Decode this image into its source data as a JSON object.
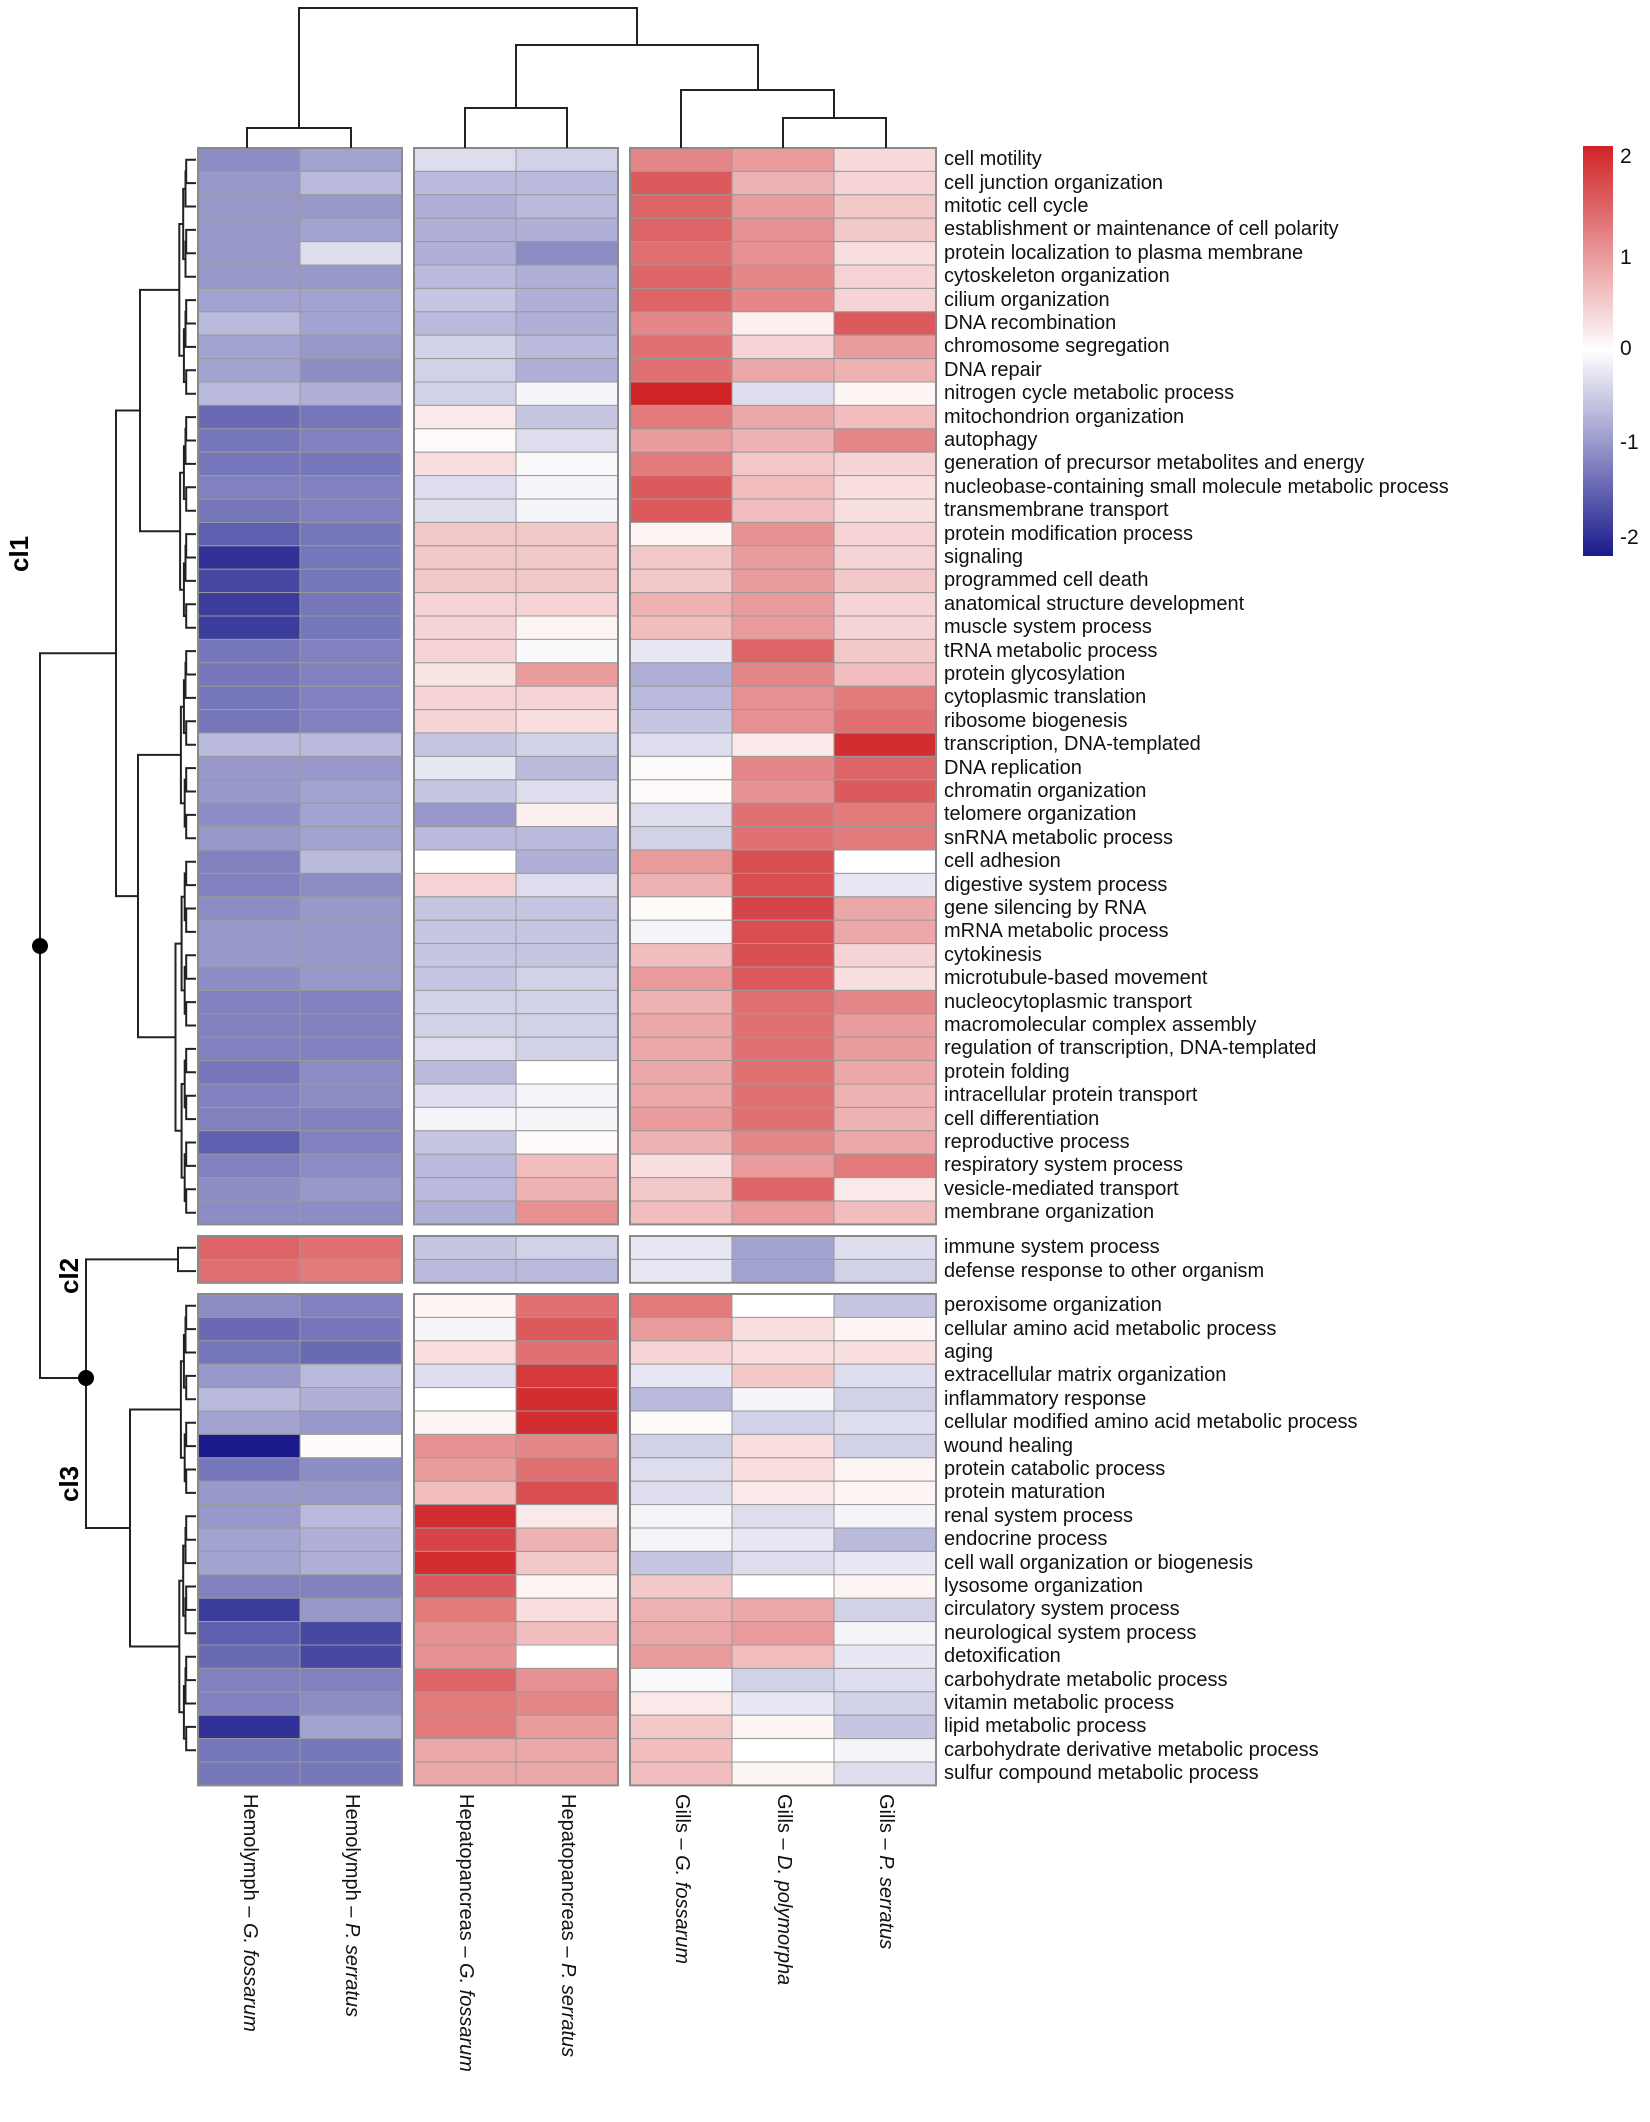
{
  "chart_data": {
    "type": "heatmap",
    "title": "",
    "legend": {
      "position": "top-right",
      "min": -2,
      "max": 2,
      "ticks": [
        "2",
        "1",
        "0",
        "-1",
        "-2"
      ],
      "colors": {
        "low": "#1a1a8c",
        "mid": "#ffffff",
        "high": "#d02326"
      }
    },
    "columns": [
      {
        "tissue": "Hemolymph",
        "species": "G. fossarum",
        "label": "Hemolymph – G. fossarum"
      },
      {
        "tissue": "Hemolymph",
        "species": "P. serratus",
        "label": "Hemolymph – P. serratus"
      },
      {
        "tissue": "Hepatopancreas",
        "species": "G. fossarum",
        "label": "Hepatopancreas – G. fossarum"
      },
      {
        "tissue": "Hepatopancreas",
        "species": "P. serratus",
        "label": "Hepatopancreas – P. serratus"
      },
      {
        "tissue": "Gills",
        "species": "G. fossarum",
        "label": "Gills – G. fossarum"
      },
      {
        "tissue": "Gills",
        "species": "D. polymorpha",
        "label": "Gills – D. polymorpha"
      },
      {
        "tissue": "Gills",
        "species": "P. serratus",
        "label": "Gills – P. serratus"
      }
    ],
    "clusters": [
      "cl1",
      "cl2",
      "cl3"
    ],
    "rows": [
      {
        "label": "cell motility",
        "cluster": "cl1",
        "values": [
          -1.0,
          -0.8,
          -0.3,
          -0.4,
          1.1,
          0.9,
          0.35
        ]
      },
      {
        "label": "cell junction organization",
        "cluster": "cl1",
        "values": [
          -0.9,
          -0.6,
          -0.6,
          -0.6,
          1.5,
          0.7,
          0.4
        ]
      },
      {
        "label": "mitotic cell cycle",
        "cluster": "cl1",
        "values": [
          -0.9,
          -0.9,
          -0.7,
          -0.6,
          1.4,
          0.9,
          0.5
        ]
      },
      {
        "label": "establishment or maintenance of cell polarity",
        "cluster": "cl1",
        "values": [
          -0.9,
          -0.8,
          -0.7,
          -0.7,
          1.4,
          1.0,
          0.5
        ]
      },
      {
        "label": "protein localization to plasma membrane",
        "cluster": "cl1",
        "values": [
          -0.9,
          -0.3,
          -0.7,
          -1.0,
          1.3,
          1.0,
          0.3
        ]
      },
      {
        "label": "cytoskeleton organization",
        "cluster": "cl1",
        "values": [
          -0.9,
          -0.9,
          -0.6,
          -0.7,
          1.4,
          1.1,
          0.4
        ]
      },
      {
        "label": "cilium organization",
        "cluster": "cl1",
        "values": [
          -0.8,
          -0.8,
          -0.5,
          -0.7,
          1.4,
          1.1,
          0.4
        ]
      },
      {
        "label": "DNA recombination",
        "cluster": "cl1",
        "values": [
          -0.6,
          -0.8,
          -0.6,
          -0.7,
          1.1,
          0.15,
          1.5
        ]
      },
      {
        "label": "chromosome segregation",
        "cluster": "cl1",
        "values": [
          -0.8,
          -0.9,
          -0.4,
          -0.6,
          1.3,
          0.4,
          0.9
        ]
      },
      {
        "label": "DNA repair",
        "cluster": "cl1",
        "values": [
          -0.8,
          -1.0,
          -0.4,
          -0.7,
          1.3,
          0.8,
          0.7
        ]
      },
      {
        "label": "nitrogen cycle metabolic process",
        "cluster": "cl1",
        "values": [
          -0.6,
          -0.7,
          -0.4,
          -0.1,
          2.0,
          -0.3,
          0.1
        ]
      },
      {
        "label": "mitochondrion organization",
        "cluster": "cl1",
        "values": [
          -1.3,
          -1.2,
          0.2,
          -0.5,
          1.2,
          0.8,
          0.6
        ]
      },
      {
        "label": "autophagy",
        "cluster": "cl1",
        "values": [
          -1.2,
          -1.1,
          0.05,
          -0.3,
          0.9,
          0.7,
          1.1
        ]
      },
      {
        "label": "generation of precursor metabolites and energy",
        "cluster": "cl1",
        "values": [
          -1.2,
          -1.2,
          0.3,
          -0.05,
          1.2,
          0.5,
          0.4
        ]
      },
      {
        "label": "nucleobase-containing small molecule metabolic process",
        "cluster": "cl1",
        "values": [
          -1.1,
          -1.1,
          -0.3,
          -0.1,
          1.5,
          0.6,
          0.3
        ]
      },
      {
        "label": "transmembrane transport",
        "cluster": "cl1",
        "values": [
          -1.2,
          -1.1,
          -0.3,
          -0.1,
          1.5,
          0.6,
          0.3
        ]
      },
      {
        "label": "protein modification process",
        "cluster": "cl1",
        "values": [
          -1.4,
          -1.2,
          0.5,
          0.5,
          0.1,
          1.0,
          0.4
        ]
      },
      {
        "label": "signaling",
        "cluster": "cl1",
        "values": [
          -1.8,
          -1.2,
          0.5,
          0.5,
          0.5,
          0.9,
          0.4
        ]
      },
      {
        "label": "programmed cell death",
        "cluster": "cl1",
        "values": [
          -1.6,
          -1.2,
          0.5,
          0.5,
          0.5,
          0.9,
          0.5
        ]
      },
      {
        "label": "anatomical structure development",
        "cluster": "cl1",
        "values": [
          -1.7,
          -1.2,
          0.4,
          0.4,
          0.7,
          0.9,
          0.4
        ]
      },
      {
        "label": "muscle system process",
        "cluster": "cl1",
        "values": [
          -1.7,
          -1.2,
          0.4,
          0.1,
          0.6,
          0.9,
          0.4
        ]
      },
      {
        "label": "tRNA metabolic process",
        "cluster": "cl1",
        "values": [
          -1.2,
          -1.1,
          0.4,
          -0.05,
          -0.2,
          1.4,
          0.5
        ]
      },
      {
        "label": "protein glycosylation",
        "cluster": "cl1",
        "values": [
          -1.2,
          -1.1,
          0.25,
          0.9,
          -0.7,
          1.1,
          0.6
        ]
      },
      {
        "label": "cytoplasmic translation",
        "cluster": "cl1",
        "values": [
          -1.2,
          -1.1,
          0.4,
          0.4,
          -0.6,
          1.0,
          1.2
        ]
      },
      {
        "label": "ribosome biogenesis",
        "cluster": "cl1",
        "values": [
          -1.2,
          -1.1,
          0.4,
          0.3,
          -0.5,
          1.0,
          1.3
        ]
      },
      {
        "label": "transcription, DNA-templated",
        "cluster": "cl1",
        "values": [
          -0.6,
          -0.6,
          -0.5,
          -0.4,
          -0.3,
          0.2,
          1.9
        ]
      },
      {
        "label": "DNA replication",
        "cluster": "cl1",
        "values": [
          -0.9,
          -0.9,
          -0.2,
          -0.6,
          0.05,
          1.1,
          1.4
        ]
      },
      {
        "label": "chromatin organization",
        "cluster": "cl1",
        "values": [
          -0.9,
          -0.8,
          -0.5,
          -0.3,
          0.05,
          1.0,
          1.5
        ]
      },
      {
        "label": "telomere organization",
        "cluster": "cl1",
        "values": [
          -1.0,
          -0.8,
          -0.9,
          0.15,
          -0.3,
          1.3,
          1.2
        ]
      },
      {
        "label": "snRNA metabolic process",
        "cluster": "cl1",
        "values": [
          -0.9,
          -0.8,
          -0.6,
          -0.6,
          -0.4,
          1.3,
          1.2
        ]
      },
      {
        "label": "cell adhesion",
        "cluster": "cl1",
        "values": [
          -1.1,
          -0.6,
          0.0,
          -0.7,
          0.9,
          1.6,
          0.0
        ]
      },
      {
        "label": "digestive system process",
        "cluster": "cl1",
        "values": [
          -1.1,
          -1.0,
          0.4,
          -0.3,
          0.7,
          1.6,
          -0.2
        ]
      },
      {
        "label": "gene silencing by RNA",
        "cluster": "cl1",
        "values": [
          -1.0,
          -0.9,
          -0.5,
          -0.5,
          0.05,
          1.7,
          0.8
        ]
      },
      {
        "label": "mRNA metabolic process",
        "cluster": "cl1",
        "values": [
          -0.9,
          -0.9,
          -0.5,
          -0.5,
          -0.1,
          1.6,
          0.8
        ]
      },
      {
        "label": "cytokinesis",
        "cluster": "cl1",
        "values": [
          -0.9,
          -0.9,
          -0.5,
          -0.5,
          0.6,
          1.6,
          0.4
        ]
      },
      {
        "label": "microtubule-based movement",
        "cluster": "cl1",
        "values": [
          -1.0,
          -0.9,
          -0.5,
          -0.4,
          0.9,
          1.5,
          0.3
        ]
      },
      {
        "label": "nucleocytoplasmic transport",
        "cluster": "cl1",
        "values": [
          -1.1,
          -1.1,
          -0.4,
          -0.4,
          0.7,
          1.3,
          1.1
        ]
      },
      {
        "label": "macromolecular complex assembly",
        "cluster": "cl1",
        "values": [
          -1.1,
          -1.1,
          -0.4,
          -0.4,
          0.8,
          1.3,
          0.9
        ]
      },
      {
        "label": "regulation of transcription, DNA-templated",
        "cluster": "cl1",
        "values": [
          -1.1,
          -1.1,
          -0.3,
          -0.4,
          0.8,
          1.3,
          0.9
        ]
      },
      {
        "label": "protein folding",
        "cluster": "cl1",
        "values": [
          -1.2,
          -1.0,
          -0.6,
          0.0,
          0.8,
          1.3,
          0.8
        ]
      },
      {
        "label": "intracellular protein transport",
        "cluster": "cl1",
        "values": [
          -1.1,
          -1.0,
          -0.3,
          -0.1,
          0.8,
          1.3,
          0.7
        ]
      },
      {
        "label": "cell differentiation",
        "cluster": "cl1",
        "values": [
          -1.1,
          -1.1,
          -0.1,
          -0.1,
          0.9,
          1.3,
          0.7
        ]
      },
      {
        "label": "reproductive process",
        "cluster": "cl1",
        "values": [
          -1.4,
          -1.1,
          -0.5,
          0.05,
          0.7,
          1.1,
          0.8
        ]
      },
      {
        "label": "respiratory system process",
        "cluster": "cl1",
        "values": [
          -1.1,
          -1.0,
          -0.6,
          0.6,
          0.3,
          0.9,
          1.2
        ]
      },
      {
        "label": "vesicle-mediated transport",
        "cluster": "cl1",
        "values": [
          -1.0,
          -0.9,
          -0.6,
          0.7,
          0.5,
          1.4,
          0.2
        ]
      },
      {
        "label": "membrane organization",
        "cluster": "cl1",
        "values": [
          -1.0,
          -1.0,
          -0.7,
          1.0,
          0.6,
          0.9,
          0.6
        ]
      },
      {
        "label": "immune system process",
        "cluster": "cl2",
        "values": [
          1.4,
          1.3,
          -0.5,
          -0.4,
          -0.2,
          -0.8,
          -0.3
        ]
      },
      {
        "label": "defense response to other organism",
        "cluster": "cl2",
        "values": [
          1.3,
          1.2,
          -0.6,
          -0.6,
          -0.2,
          -0.8,
          -0.4
        ]
      },
      {
        "label": "peroxisome organization",
        "cluster": "cl3",
        "values": [
          -1.0,
          -1.1,
          0.1,
          1.3,
          1.2,
          0.0,
          -0.5
        ]
      },
      {
        "label": "cellular amino acid metabolic process",
        "cluster": "cl3",
        "values": [
          -1.3,
          -1.2,
          -0.1,
          1.5,
          0.9,
          0.3,
          0.1
        ]
      },
      {
        "label": "aging",
        "cluster": "cl3",
        "values": [
          -1.2,
          -1.3,
          0.3,
          1.3,
          0.4,
          0.3,
          0.3
        ]
      },
      {
        "label": "extracellular matrix organization",
        "cluster": "cl3",
        "values": [
          -0.9,
          -0.6,
          -0.3,
          1.8,
          -0.2,
          0.5,
          -0.3
        ]
      },
      {
        "label": "inflammatory response",
        "cluster": "cl3",
        "values": [
          -0.6,
          -0.7,
          0.0,
          1.9,
          -0.6,
          -0.1,
          -0.4
        ]
      },
      {
        "label": "cellular modified amino acid metabolic process",
        "cluster": "cl3",
        "values": [
          -0.8,
          -0.9,
          0.1,
          1.9,
          0.05,
          -0.4,
          -0.3
        ]
      },
      {
        "label": "wound healing",
        "cluster": "cl3",
        "values": [
          -2.0,
          0.05,
          1.0,
          1.1,
          -0.4,
          0.3,
          -0.4
        ]
      },
      {
        "label": "protein catabolic process",
        "cluster": "cl3",
        "values": [
          -1.2,
          -1.0,
          0.9,
          1.3,
          -0.3,
          0.3,
          0.1
        ]
      },
      {
        "label": "protein maturation",
        "cluster": "cl3",
        "values": [
          -0.9,
          -0.9,
          0.6,
          1.6,
          -0.3,
          0.2,
          0.1
        ]
      },
      {
        "label": "renal system process",
        "cluster": "cl3",
        "values": [
          -0.9,
          -0.6,
          1.9,
          0.2,
          -0.1,
          -0.3,
          -0.1
        ]
      },
      {
        "label": "endocrine process",
        "cluster": "cl3",
        "values": [
          -0.8,
          -0.7,
          1.7,
          0.7,
          -0.1,
          -0.2,
          -0.6
        ]
      },
      {
        "label": "cell wall organization or biogenesis",
        "cluster": "cl3",
        "values": [
          -0.8,
          -0.7,
          1.9,
          0.5,
          -0.5,
          -0.3,
          -0.2
        ]
      },
      {
        "label": "lysosome organization",
        "cluster": "cl3",
        "values": [
          -1.1,
          -1.1,
          1.5,
          0.1,
          0.5,
          0.0,
          0.1
        ]
      },
      {
        "label": "circulatory system process",
        "cluster": "cl3",
        "values": [
          -1.7,
          -0.9,
          1.2,
          0.3,
          0.7,
          0.8,
          -0.4
        ]
      },
      {
        "label": "neurological system process",
        "cluster": "cl3",
        "values": [
          -1.4,
          -1.6,
          1.0,
          0.6,
          0.8,
          0.9,
          -0.1
        ]
      },
      {
        "label": "detoxification",
        "cluster": "cl3",
        "values": [
          -1.3,
          -1.6,
          1.0,
          0.0,
          0.9,
          0.6,
          -0.2
        ]
      },
      {
        "label": "carbohydrate metabolic process",
        "cluster": "cl3",
        "values": [
          -1.1,
          -1.1,
          1.4,
          1.0,
          -0.05,
          -0.4,
          -0.3
        ]
      },
      {
        "label": "vitamin metabolic process",
        "cluster": "cl3",
        "values": [
          -1.1,
          -1.0,
          1.2,
          1.1,
          0.2,
          -0.2,
          -0.4
        ]
      },
      {
        "label": "lipid metabolic process",
        "cluster": "cl3",
        "values": [
          -1.8,
          -0.8,
          1.2,
          0.9,
          0.5,
          0.1,
          -0.5
        ]
      },
      {
        "label": "carbohydrate derivative metabolic process",
        "cluster": "cl3",
        "values": [
          -1.2,
          -1.2,
          0.8,
          0.8,
          0.6,
          0.0,
          -0.1
        ]
      },
      {
        "label": "sulfur compound metabolic process",
        "cluster": "cl3",
        "values": [
          -1.2,
          -1.2,
          0.8,
          0.8,
          0.6,
          0.1,
          -0.3
        ]
      }
    ],
    "xlabel": "",
    "ylabel": ""
  }
}
